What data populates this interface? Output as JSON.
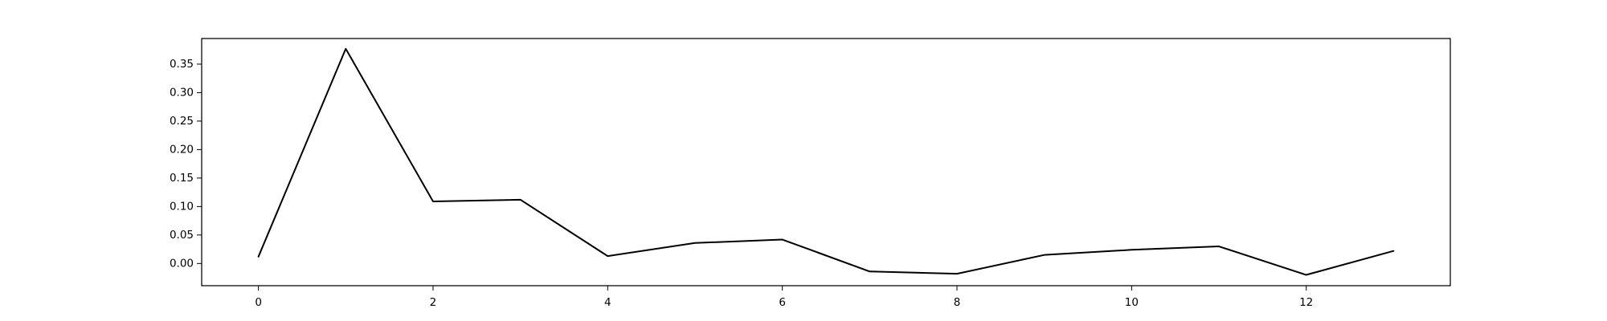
{
  "chart_data": {
    "type": "line",
    "title": "",
    "xlabel": "",
    "ylabel": "",
    "xlim": [
      -0.65,
      13.65
    ],
    "ylim": [
      -0.039,
      0.395
    ],
    "xticks": [
      0,
      2,
      4,
      6,
      8,
      10,
      12
    ],
    "yticks": [
      0.0,
      0.05,
      0.1,
      0.15,
      0.2,
      0.25,
      0.3,
      0.35
    ],
    "xtick_labels": [
      "0",
      "2",
      "4",
      "6",
      "8",
      "10",
      "12"
    ],
    "ytick_labels": [
      "0.00",
      "0.05",
      "0.10",
      "0.15",
      "0.20",
      "0.25",
      "0.30",
      "0.35"
    ],
    "grid": false,
    "legend": "none",
    "colors": {
      "line": "#000000",
      "frame": "#000000",
      "background": "#ffffff"
    },
    "series": [
      {
        "x": [
          0,
          1,
          2,
          3,
          4,
          5,
          6,
          7,
          8,
          9,
          10,
          11,
          12,
          13
        ],
        "values": [
          0.012,
          0.377,
          0.109,
          0.112,
          0.013,
          0.036,
          0.042,
          -0.014,
          -0.018,
          0.015,
          0.024,
          0.03,
          -0.02,
          0.022
        ]
      }
    ]
  }
}
